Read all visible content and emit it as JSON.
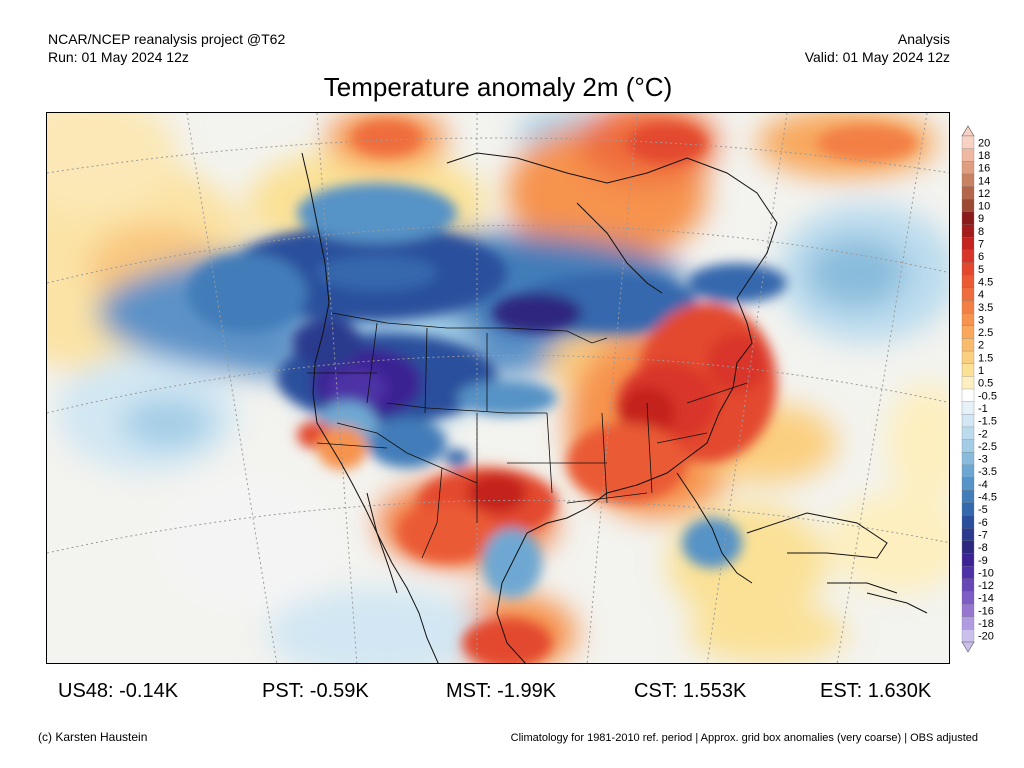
{
  "header": {
    "line1_left": "NCAR/NCEP reanalysis project @T62",
    "line2_left": "Run: 01 May 2024 12z",
    "line1_right": "Analysis",
    "line2_right": "Valid: 01 May 2024 12z"
  },
  "title": "Temperature anomaly 2m (°C)",
  "colorbar": {
    "labels": [
      "20",
      "18",
      "16",
      "14",
      "12",
      "10",
      "9",
      "8",
      "7",
      "6",
      "5",
      "4.5",
      "4",
      "3.5",
      "3",
      "2.5",
      "2",
      "1.5",
      "1",
      "0.5",
      "-0.5",
      "-1",
      "-1.5",
      "-2",
      "-2.5",
      "-3",
      "-3.5",
      "-4",
      "-4.5",
      "-5",
      "-6",
      "-7",
      "-8",
      "-9",
      "-10",
      "-12",
      "-14",
      "-16",
      "-18",
      "-20"
    ],
    "colors": [
      "#f6d1c4",
      "#efb8a2",
      "#e09e80",
      "#c98262",
      "#b4664a",
      "#9c4a34",
      "#8b1a1a",
      "#a51c1c",
      "#c4231f",
      "#d9342a",
      "#e3482f",
      "#ea5a35",
      "#ef6d3c",
      "#f37f45",
      "#f6934e",
      "#f8a75b",
      "#f9bb6c",
      "#fbcf80",
      "#fbe196",
      "#fdefbf",
      "#ffffff",
      "#e6f1f8",
      "#d2e7f3",
      "#bcdcee",
      "#a3cde6",
      "#89bcdc",
      "#6ea8d2",
      "#5693c6",
      "#427db9",
      "#3568ad",
      "#2b4f9c",
      "#2a3a8e",
      "#2d287f",
      "#3b2393",
      "#4e31a6",
      "#6746b6",
      "#7e5dc4",
      "#9676d1",
      "#b09ae0",
      "#cbc0ec"
    ]
  },
  "stats": [
    {
      "label": "US48: -0.14K"
    },
    {
      "label": "PST: -0.59K"
    },
    {
      "label": "MST: -1.99K"
    },
    {
      "label": "CST: 1.553K"
    },
    {
      "label": "EST: 1.630K"
    }
  ],
  "footer": {
    "left": "(c) Karsten Haustein",
    "right": "Climatology for 1981-2010 ref. period | Approx. grid box anomalies (very coarse) | OBS adjusted"
  }
}
